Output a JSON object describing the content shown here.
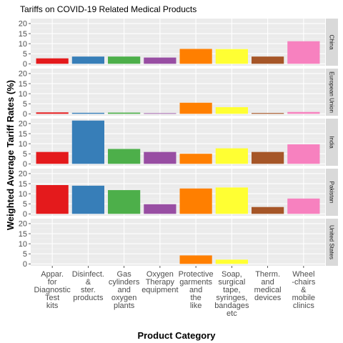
{
  "chart_data": {
    "type": "bar",
    "title": "Tariffs on COVID-19 Related Medical Products",
    "xlabel": "Product Category",
    "ylabel": "Weighted Average Tariff Rates (%)",
    "ylim": [
      0,
      21.5
    ],
    "yticks": [
      0,
      5,
      10,
      15,
      20
    ],
    "grid": true,
    "categories": [
      "Appar. for Diagnostic Test kits",
      "Disinfect. & ster. products",
      "Gas cylinders and oxygen plants",
      "Oxygen Therapy equipment",
      "Protective garments and the like",
      "Soap, surgical tape, syringes, bandages etc",
      "Therm. and medical devices",
      "Wheel -chairs & mobile clinics"
    ],
    "category_labels": [
      [
        "Appar.",
        "for",
        "Diagnostic",
        "Test",
        "kits"
      ],
      [
        "Disinfect.",
        "&",
        "ster.",
        "products"
      ],
      [
        "Gas",
        "cylinders",
        "and",
        "oxygen",
        "plants"
      ],
      [
        "Oxygen",
        "Therapy",
        "equipment"
      ],
      [
        "Protective",
        "garments",
        "and",
        "the",
        "like"
      ],
      [
        "Soap,",
        "surgical",
        "tape,",
        "syringes,",
        "bandages",
        "etc"
      ],
      [
        "Therm.",
        "and",
        "medical",
        "devices"
      ],
      [
        "Wheel",
        "-chairs",
        "&",
        "mobile",
        "clinics"
      ]
    ],
    "colors": [
      "#e41a1c",
      "#377eb8",
      "#4daf4a",
      "#984ea3",
      "#ff7f00",
      "#ffff33",
      "#a65628",
      "#f781bf"
    ],
    "facets": [
      {
        "name": "China",
        "values": [
          2.7,
          3.6,
          3.6,
          3.1,
          7.4,
          7.3,
          3.6,
          11.2
        ]
      },
      {
        "name": "European Union",
        "values": [
          0.7,
          0.5,
          0.6,
          0.3,
          5.5,
          3.3,
          0.4,
          0.9
        ]
      },
      {
        "name": "India",
        "values": [
          5.9,
          21.5,
          7.4,
          5.9,
          5.0,
          7.7,
          5.9,
          9.7
        ]
      },
      {
        "name": "Pakistan",
        "values": [
          14.3,
          14.0,
          11.8,
          4.8,
          12.6,
          13.1,
          3.4,
          7.6
        ]
      },
      {
        "name": "United States",
        "values": [
          0.0,
          0.0,
          0.0,
          0.0,
          4.2,
          2.1,
          0.0,
          0.0
        ]
      }
    ]
  }
}
